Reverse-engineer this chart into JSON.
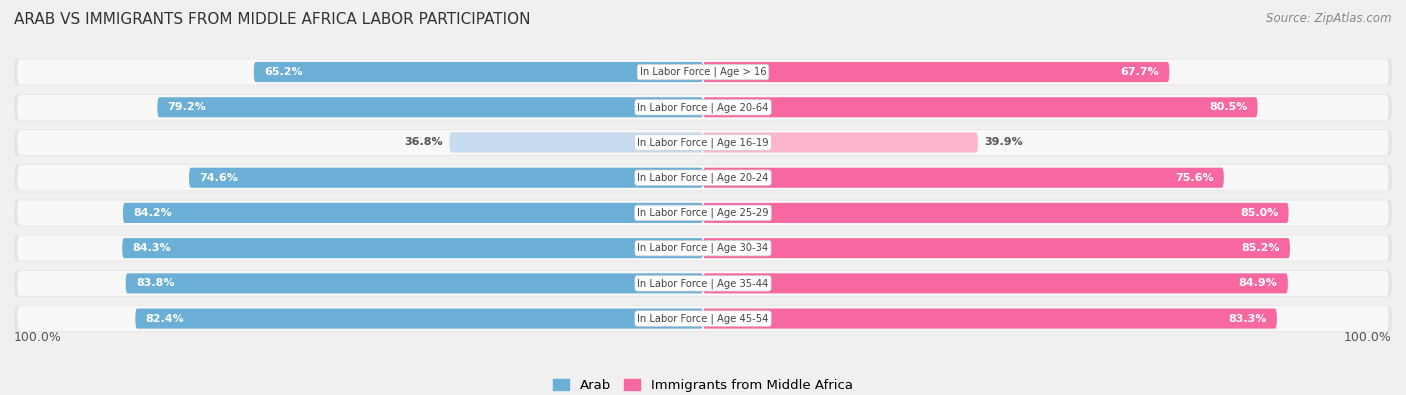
{
  "title": "Arab vs Immigrants from Middle Africa Labor Participation",
  "source": "Source: ZipAtlas.com",
  "categories": [
    "In Labor Force | Age > 16",
    "In Labor Force | Age 20-64",
    "In Labor Force | Age 16-19",
    "In Labor Force | Age 20-24",
    "In Labor Force | Age 25-29",
    "In Labor Force | Age 30-34",
    "In Labor Force | Age 35-44",
    "In Labor Force | Age 45-54"
  ],
  "arab_values": [
    65.2,
    79.2,
    36.8,
    74.6,
    84.2,
    84.3,
    83.8,
    82.4
  ],
  "immigrant_values": [
    67.7,
    80.5,
    39.9,
    75.6,
    85.0,
    85.2,
    84.9,
    83.3
  ],
  "arab_color": "#6baed6",
  "arab_color_light": "#c6dbef",
  "immigrant_color": "#f768a1",
  "immigrant_color_light": "#fbb4ca",
  "label_color_white": "#ffffff",
  "label_color_dark": "#555555",
  "background_color": "#f0f0f0",
  "row_bg_light": "#ffffff",
  "row_bg_alt": "#e8e8e8",
  "max_value": 100.0,
  "legend_arab": "Arab",
  "legend_immigrant": "Immigrants from Middle Africa",
  "light_threshold": 50.0
}
